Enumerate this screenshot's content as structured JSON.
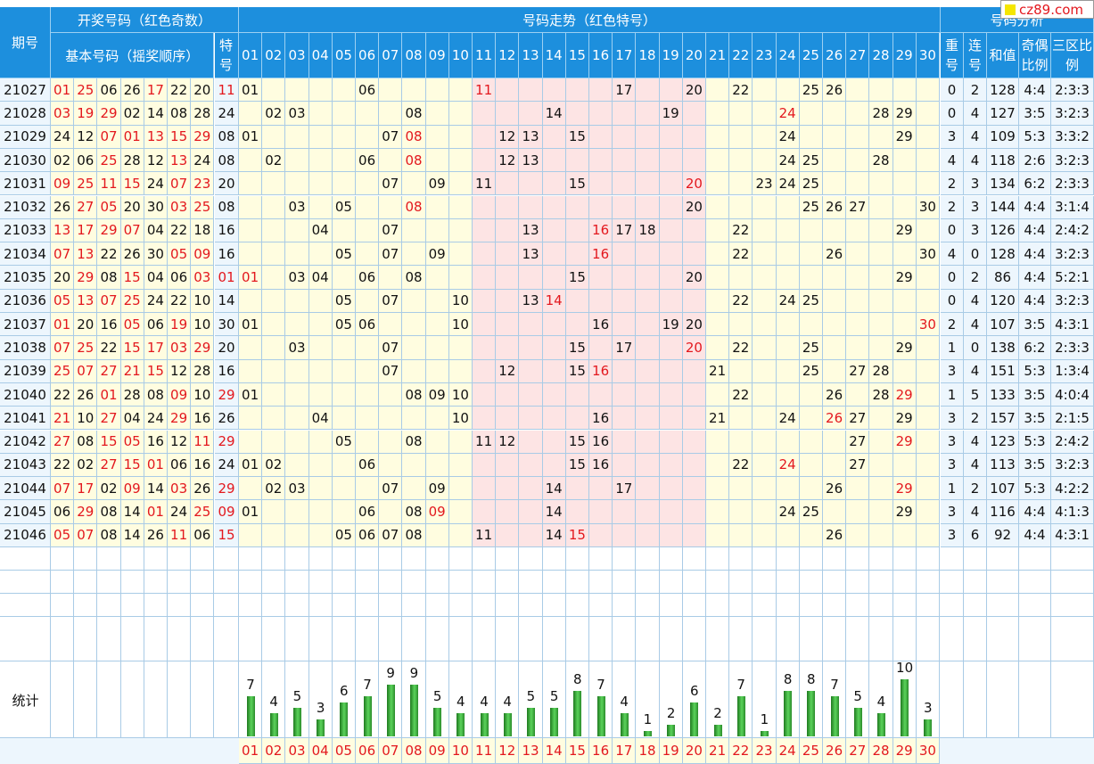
{
  "header": {
    "period_label": "期号",
    "draw_group": "开奖号码（红色奇数）",
    "basic_label": "基本号码（摇奖顺序）",
    "special_label": "特号",
    "trend_group": "号码走势（红色特号）",
    "analysis_group": "号码分析",
    "repeat_label": "重号",
    "consec_label": "连号",
    "sum_label": "和值",
    "oddeven_label": "奇偶比例",
    "zone_label": "三区比例",
    "trend_numbers": [
      "01",
      "02",
      "03",
      "04",
      "05",
      "06",
      "07",
      "08",
      "09",
      "10",
      "11",
      "12",
      "13",
      "14",
      "15",
      "16",
      "17",
      "18",
      "19",
      "20",
      "21",
      "22",
      "23",
      "24",
      "25",
      "26",
      "27",
      "28",
      "29",
      "30"
    ]
  },
  "logo_text": "cz89.com",
  "stats_label": "统计",
  "colors": {
    "header_bg": "#1d8fdd",
    "odd_red": "#e3181e",
    "band_yellow": "#fffde0",
    "band_pink": "#fde4e4",
    "band_blue": "#edf6fd",
    "bar_green": "#3aa83a"
  },
  "rows": [
    {
      "period": "21027",
      "draw": [
        "01",
        "25",
        "06",
        "26",
        "17",
        "22",
        "20"
      ],
      "special": "11",
      "repeat": "0",
      "consec": "2",
      "sum": "128",
      "oddeven": "4:4",
      "zone": "2:3:3"
    },
    {
      "period": "21028",
      "draw": [
        "03",
        "19",
        "29",
        "02",
        "14",
        "08",
        "28"
      ],
      "special": "24",
      "repeat": "0",
      "consec": "4",
      "sum": "127",
      "oddeven": "3:5",
      "zone": "3:2:3"
    },
    {
      "period": "21029",
      "draw": [
        "24",
        "12",
        "07",
        "01",
        "13",
        "15",
        "29"
      ],
      "special": "08",
      "repeat": "3",
      "consec": "4",
      "sum": "109",
      "oddeven": "5:3",
      "zone": "3:3:2"
    },
    {
      "period": "21030",
      "draw": [
        "02",
        "06",
        "25",
        "28",
        "12",
        "13",
        "24"
      ],
      "special": "08",
      "repeat": "4",
      "consec": "4",
      "sum": "118",
      "oddeven": "2:6",
      "zone": "3:2:3"
    },
    {
      "period": "21031",
      "draw": [
        "09",
        "25",
        "11",
        "15",
        "24",
        "07",
        "23"
      ],
      "special": "20",
      "repeat": "2",
      "consec": "3",
      "sum": "134",
      "oddeven": "6:2",
      "zone": "2:3:3"
    },
    {
      "period": "21032",
      "draw": [
        "26",
        "27",
        "05",
        "20",
        "30",
        "03",
        "25"
      ],
      "special": "08",
      "repeat": "2",
      "consec": "3",
      "sum": "144",
      "oddeven": "4:4",
      "zone": "3:1:4"
    },
    {
      "period": "21033",
      "draw": [
        "13",
        "17",
        "29",
        "07",
        "04",
        "22",
        "18"
      ],
      "special": "16",
      "repeat": "0",
      "consec": "3",
      "sum": "126",
      "oddeven": "4:4",
      "zone": "2:4:2"
    },
    {
      "period": "21034",
      "draw": [
        "07",
        "13",
        "22",
        "26",
        "30",
        "05",
        "09"
      ],
      "special": "16",
      "repeat": "4",
      "consec": "0",
      "sum": "128",
      "oddeven": "4:4",
      "zone": "3:2:3"
    },
    {
      "period": "21035",
      "draw": [
        "20",
        "29",
        "08",
        "15",
        "04",
        "06",
        "03"
      ],
      "special": "01",
      "repeat": "0",
      "consec": "2",
      "sum": "86",
      "oddeven": "4:4",
      "zone": "5:2:1"
    },
    {
      "period": "21036",
      "draw": [
        "05",
        "13",
        "07",
        "25",
        "24",
        "22",
        "10"
      ],
      "special": "14",
      "repeat": "0",
      "consec": "4",
      "sum": "120",
      "oddeven": "4:4",
      "zone": "3:2:3"
    },
    {
      "period": "21037",
      "draw": [
        "01",
        "20",
        "16",
        "05",
        "06",
        "19",
        "10"
      ],
      "special": "30",
      "repeat": "2",
      "consec": "4",
      "sum": "107",
      "oddeven": "3:5",
      "zone": "4:3:1"
    },
    {
      "period": "21038",
      "draw": [
        "07",
        "25",
        "22",
        "15",
        "17",
        "03",
        "29"
      ],
      "special": "20",
      "repeat": "1",
      "consec": "0",
      "sum": "138",
      "oddeven": "6:2",
      "zone": "2:3:3"
    },
    {
      "period": "21039",
      "draw": [
        "25",
        "07",
        "27",
        "21",
        "15",
        "12",
        "28"
      ],
      "special": "16",
      "repeat": "3",
      "consec": "4",
      "sum": "151",
      "oddeven": "5:3",
      "zone": "1:3:4"
    },
    {
      "period": "21040",
      "draw": [
        "22",
        "26",
        "01",
        "28",
        "08",
        "09",
        "10"
      ],
      "special": "29",
      "repeat": "1",
      "consec": "5",
      "sum": "133",
      "oddeven": "3:5",
      "zone": "4:0:4"
    },
    {
      "period": "21041",
      "draw": [
        "21",
        "10",
        "27",
        "04",
        "24",
        "29",
        "16"
      ],
      "special": "26",
      "repeat": "3",
      "consec": "2",
      "sum": "157",
      "oddeven": "3:5",
      "zone": "2:1:5"
    },
    {
      "period": "21042",
      "draw": [
        "27",
        "08",
        "15",
        "05",
        "16",
        "12",
        "11"
      ],
      "special": "29",
      "repeat": "3",
      "consec": "4",
      "sum": "123",
      "oddeven": "5:3",
      "zone": "2:4:2"
    },
    {
      "period": "21043",
      "draw": [
        "22",
        "02",
        "27",
        "15",
        "01",
        "06",
        "16"
      ],
      "special": "24",
      "repeat": "3",
      "consec": "4",
      "sum": "113",
      "oddeven": "3:5",
      "zone": "3:2:3"
    },
    {
      "period": "21044",
      "draw": [
        "07",
        "17",
        "02",
        "09",
        "14",
        "03",
        "26"
      ],
      "special": "29",
      "repeat": "1",
      "consec": "2",
      "sum": "107",
      "oddeven": "5:3",
      "zone": "4:2:2"
    },
    {
      "period": "21045",
      "draw": [
        "06",
        "29",
        "08",
        "14",
        "01",
        "24",
        "25"
      ],
      "special": "09",
      "repeat": "3",
      "consec": "4",
      "sum": "116",
      "oddeven": "4:4",
      "zone": "4:1:3"
    },
    {
      "period": "21046",
      "draw": [
        "05",
        "07",
        "08",
        "14",
        "26",
        "11",
        "06"
      ],
      "special": "15",
      "repeat": "3",
      "consec": "6",
      "sum": "92",
      "oddeven": "4:4",
      "zone": "4:3:1"
    }
  ],
  "stats_counts": [
    7,
    4,
    5,
    3,
    6,
    7,
    9,
    9,
    5,
    4,
    4,
    4,
    5,
    5,
    8,
    7,
    4,
    1,
    2,
    6,
    2,
    7,
    1,
    8,
    8,
    7,
    5,
    4,
    10,
    3
  ]
}
